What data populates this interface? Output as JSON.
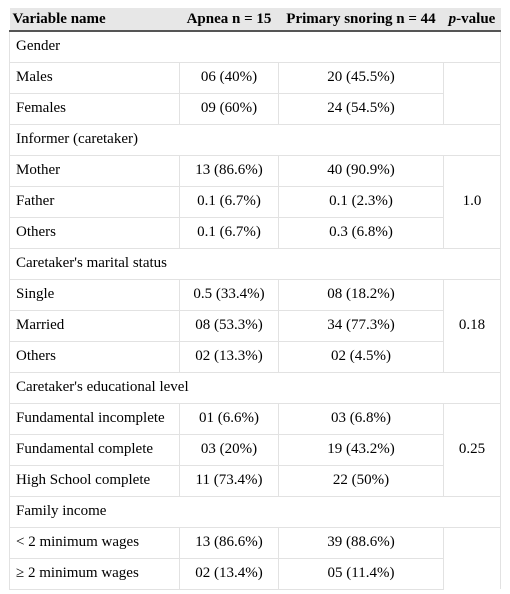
{
  "table": {
    "headers": {
      "variable": "Variable name",
      "apnea": "Apnea n = 15",
      "snoring": "Primary snoring n = 44",
      "p_italic": "p",
      "p_rest": "-value"
    },
    "gender": {
      "title": "Gender",
      "rows": [
        {
          "label": "Males",
          "apnea": "06 (40%)",
          "snoring": "20 (45.5%)"
        },
        {
          "label": "Females",
          "apnea": "09 (60%)",
          "snoring": "24 (54.5%)"
        }
      ],
      "p": ""
    },
    "informer": {
      "title": "Informer (caretaker)",
      "rows": [
        {
          "label": "Mother",
          "apnea": "13 (86.6%)",
          "snoring": "40 (90.9%)"
        },
        {
          "label": "Father",
          "apnea": "0.1 (6.7%)",
          "snoring": "0.1 (2.3%)"
        },
        {
          "label": "Others",
          "apnea": "0.1 (6.7%)",
          "snoring": "0.3 (6.8%)"
        }
      ],
      "p": "1.0"
    },
    "marital": {
      "title": "Caretaker's marital status",
      "rows": [
        {
          "label": "Single",
          "apnea": "0.5 (33.4%)",
          "snoring": "08 (18.2%)"
        },
        {
          "label": "Married",
          "apnea": "08 (53.3%)",
          "snoring": "34 (77.3%)"
        },
        {
          "label": "Others",
          "apnea": "02 (13.3%)",
          "snoring": "02 (4.5%)"
        }
      ],
      "p": "0.18"
    },
    "education": {
      "title": "Caretaker's educational level",
      "rows": [
        {
          "label": "Fundamental incomplete",
          "apnea": "01 (6.6%)",
          "snoring": "03 (6.8%)"
        },
        {
          "label": "Fundamental complete",
          "apnea": "03 (20%)",
          "snoring": "19 (43.2%)"
        },
        {
          "label": "High School complete",
          "apnea": "11 (73.4%)",
          "snoring": "22 (50%)"
        }
      ],
      "p": "0.25"
    },
    "income": {
      "title": "Family income",
      "rows": [
        {
          "label": "< 2 minimum wages",
          "apnea": "13 (86.6%)",
          "snoring": "39 (88.6%)"
        },
        {
          "label": "≥ 2 minimum wages",
          "apnea": "02 (13.4%)",
          "snoring": "05 (11.4%)"
        }
      ],
      "p": ""
    }
  }
}
